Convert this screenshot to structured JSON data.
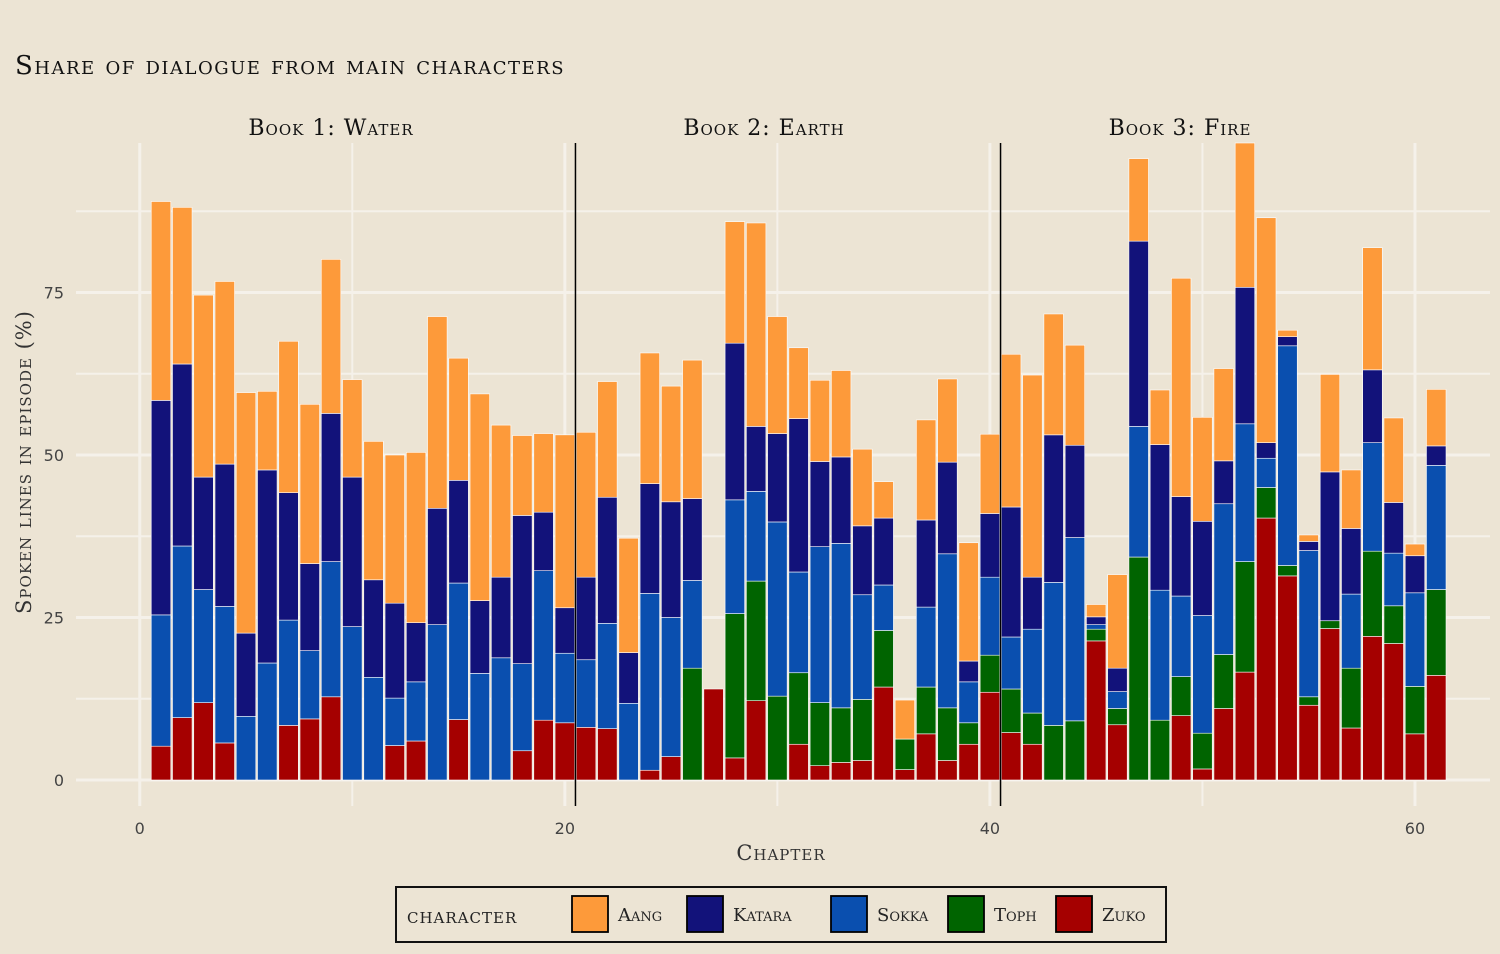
{
  "chart_data": {
    "type": "bar",
    "stacked": true,
    "title": "Share of dialogue from main characters",
    "xlabel": "Chapter",
    "ylabel": "Spoken lines in episode (%)",
    "xlim": [
      -3,
      64
    ],
    "ylim": [
      -4,
      98
    ],
    "x_ticks": [
      0,
      20,
      40,
      60
    ],
    "y_ticks": [
      0,
      25,
      50,
      75
    ],
    "grid": true,
    "legend_title": "character",
    "legend_position": "bottom",
    "books": [
      {
        "label": "Book 1: Water",
        "start": 1,
        "end": 20
      },
      {
        "label": "Book 2: Earth",
        "start": 21,
        "end": 40
      },
      {
        "label": "Book 3: Fire",
        "start": 41,
        "end": 61
      }
    ],
    "book_dividers": [
      20.5,
      40.5
    ],
    "x": [
      1,
      2,
      3,
      4,
      5,
      6,
      7,
      8,
      9,
      10,
      11,
      12,
      13,
      14,
      15,
      16,
      17,
      18,
      19,
      20,
      21,
      22,
      23,
      24,
      25,
      26,
      27,
      28,
      29,
      30,
      31,
      32,
      33,
      34,
      35,
      36,
      37,
      38,
      39,
      40,
      41,
      42,
      43,
      44,
      45,
      46,
      47,
      48,
      49,
      50,
      51,
      52,
      53,
      54,
      55,
      56,
      57,
      58,
      59,
      60,
      61
    ],
    "series": [
      {
        "name": "Zuko",
        "color": "#a50000",
        "values": [
          5.2,
          9.6,
          11.9,
          5.7,
          0,
          0,
          8.4,
          9.4,
          12.8,
          0,
          0,
          5.3,
          6,
          0,
          9.3,
          0,
          0,
          4.5,
          9.2,
          8.8,
          8.1,
          7.9,
          0,
          1.5,
          3.6,
          0,
          14,
          3.4,
          12.2,
          0,
          5.5,
          2.2,
          2.7,
          3,
          14.3,
          1.6,
          7.1,
          3,
          5.5,
          13.5,
          7.3,
          5.5,
          0,
          0,
          21.4,
          8.5,
          0,
          0,
          9.9,
          1.7,
          11,
          16.6,
          40.3,
          31.4,
          11.5,
          23.3,
          8,
          22.1,
          21,
          7.1,
          16.1
        ]
      },
      {
        "name": "Toph",
        "color": "#006400",
        "values": [
          0,
          0,
          0,
          0,
          0,
          0,
          0,
          0,
          0,
          0,
          0,
          0,
          0,
          0,
          0,
          0,
          0,
          0,
          0,
          0,
          0,
          0,
          0,
          0,
          0,
          17.2,
          0,
          22.2,
          18.4,
          12.9,
          11,
          9.7,
          8.4,
          9.4,
          8.7,
          4.7,
          7.2,
          8.1,
          3.3,
          5.7,
          6.7,
          4.8,
          8.4,
          9.1,
          1.8,
          2.5,
          34.3,
          9.2,
          6,
          5.5,
          8.3,
          17,
          4.7,
          1.6,
          1.3,
          1.2,
          9.2,
          13.1,
          5.8,
          7.3,
          13.2
        ]
      },
      {
        "name": "Sokka",
        "color": "#0a4faf",
        "values": [
          20.2,
          26.4,
          17.4,
          21,
          9.8,
          18,
          16.2,
          10.5,
          20.8,
          23.6,
          15.8,
          7.3,
          9.1,
          23.9,
          21,
          16.4,
          18.8,
          13.4,
          23,
          10.7,
          10.4,
          16.2,
          11.8,
          27.2,
          21.4,
          13.5,
          0,
          17.5,
          13.8,
          26.8,
          15.5,
          24,
          25.3,
          16.1,
          7,
          0,
          12.3,
          23.7,
          6.3,
          12,
          8,
          12.9,
          22,
          28.2,
          0.7,
          2.6,
          20.1,
          20,
          12.4,
          18.1,
          23.2,
          21.2,
          4.5,
          33.8,
          22.5,
          0,
          11.4,
          16.7,
          8.1,
          14.4,
          19.1
        ]
      },
      {
        "name": "Katara",
        "color": "#12127a",
        "values": [
          33,
          28,
          17.3,
          21.9,
          12.8,
          29.7,
          19.6,
          13.4,
          22.8,
          23,
          15,
          14.6,
          9.1,
          17.9,
          15.8,
          11.2,
          12.4,
          22.8,
          9,
          7,
          12.7,
          19.4,
          7.8,
          16.9,
          17.8,
          12.6,
          0,
          24.1,
          10,
          13.6,
          23.6,
          13.1,
          13.3,
          10.6,
          10.3,
          0,
          13.4,
          14.1,
          3.2,
          9.8,
          20,
          8,
          22.7,
          14.2,
          1.2,
          3.6,
          28.5,
          22.4,
          15.3,
          14.5,
          6.6,
          21,
          2.4,
          1.4,
          1.4,
          22.9,
          10.1,
          11.2,
          7.8,
          5.7,
          3
        ]
      },
      {
        "name": "Aang",
        "color": "#fd9a3a",
        "values": [
          30.6,
          24.1,
          28,
          28.1,
          37,
          12.1,
          23.3,
          24.5,
          23.7,
          15,
          21.3,
          22.8,
          26.2,
          29.5,
          18.8,
          31.8,
          23.4,
          12.3,
          12.1,
          26.6,
          22.3,
          17.8,
          17.6,
          20.1,
          17.8,
          21.3,
          0,
          18.7,
          31.3,
          18,
          10.9,
          12.5,
          13.3,
          11.8,
          5.6,
          6,
          15.4,
          12.8,
          18.2,
          12.2,
          23.5,
          31.1,
          18.6,
          15.4,
          1.9,
          14.4,
          12.7,
          8.4,
          33.6,
          16,
          14.2,
          22.2,
          34.6,
          1,
          1,
          15,
          9,
          18.8,
          13,
          1.8,
          8.7
        ]
      }
    ]
  }
}
